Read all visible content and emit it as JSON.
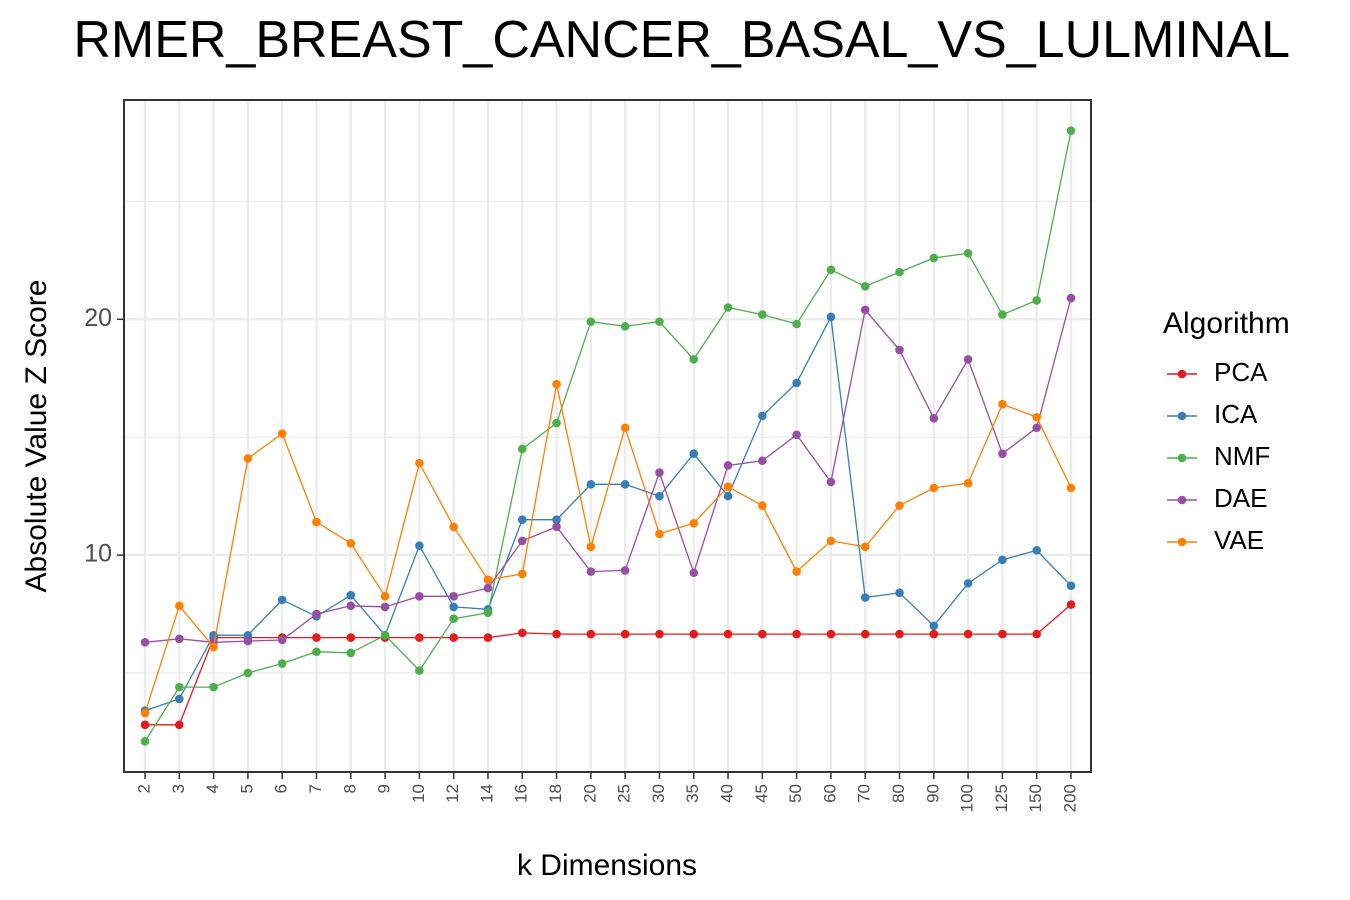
{
  "chart_data": {
    "type": "line",
    "title": "RMER_BREAST_CANCER_BASAL_VS_LULMINAL",
    "xlabel": "k Dimensions",
    "ylabel": "Absolute Value Z Score",
    "categories": [
      "2",
      "3",
      "4",
      "5",
      "6",
      "7",
      "8",
      "9",
      "10",
      "12",
      "14",
      "16",
      "18",
      "20",
      "25",
      "30",
      "35",
      "40",
      "45",
      "50",
      "60",
      "70",
      "80",
      "90",
      "100",
      "125",
      "150",
      "200"
    ],
    "yticks": [
      "10",
      "20"
    ],
    "ylim": [
      0.8,
      29.3
    ],
    "grid": true,
    "legend": {
      "title": "Algorithm",
      "position": "right"
    },
    "series": [
      {
        "name": "PCA",
        "color": "#e41a1c",
        "values": [
          2.8,
          2.8,
          6.5,
          6.5,
          6.5,
          6.5,
          6.5,
          6.5,
          6.5,
          6.5,
          6.5,
          6.7,
          6.65,
          6.65,
          6.65,
          6.65,
          6.65,
          6.65,
          6.65,
          6.65,
          6.65,
          6.65,
          6.65,
          6.65,
          6.65,
          6.65,
          6.65,
          7.9
        ]
      },
      {
        "name": "ICA",
        "color": "#377eb8",
        "values": [
          3.4,
          3.9,
          6.6,
          6.6,
          8.1,
          7.4,
          8.3,
          6.6,
          10.4,
          7.8,
          7.7,
          11.5,
          11.5,
          13.0,
          13.0,
          12.5,
          14.3,
          12.5,
          15.9,
          17.3,
          20.1,
          8.2,
          8.4,
          7.0,
          8.8,
          9.8,
          10.2,
          8.7
        ]
      },
      {
        "name": "NMF",
        "color": "#4daf4a",
        "values": [
          2.1,
          4.4,
          4.4,
          5.0,
          5.4,
          5.9,
          5.85,
          6.6,
          5.1,
          7.3,
          7.55,
          14.5,
          15.6,
          19.9,
          19.7,
          19.9,
          18.3,
          20.5,
          20.2,
          19.8,
          22.1,
          21.4,
          22.0,
          22.6,
          22.8,
          20.2,
          20.8,
          28.0
        ]
      },
      {
        "name": "DAE",
        "color": "#984ea3",
        "values": [
          6.3,
          6.45,
          6.3,
          6.35,
          6.4,
          7.5,
          7.85,
          7.8,
          8.25,
          8.25,
          8.6,
          10.6,
          11.2,
          9.3,
          9.35,
          13.5,
          9.25,
          13.8,
          14.0,
          15.1,
          13.1,
          20.4,
          18.7,
          15.8,
          18.3,
          14.3,
          15.4,
          20.9
        ]
      },
      {
        "name": "VAE",
        "color": "#ff7f00",
        "values": [
          3.3,
          7.85,
          6.1,
          14.1,
          15.15,
          11.4,
          10.5,
          8.25,
          13.9,
          11.2,
          8.95,
          9.2,
          17.25,
          10.35,
          15.4,
          10.9,
          11.35,
          12.9,
          12.1,
          9.3,
          10.6,
          10.35,
          12.1,
          12.85,
          13.05,
          16.4,
          15.85,
          12.85
        ]
      }
    ]
  }
}
